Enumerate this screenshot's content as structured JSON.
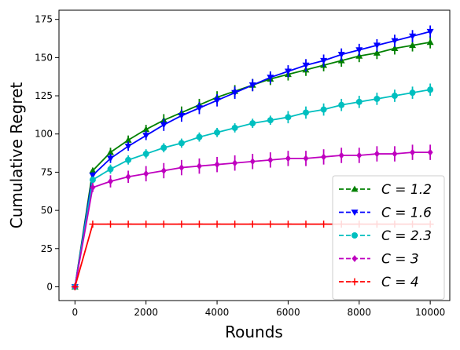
{
  "chart_data": {
    "type": "line",
    "title": "",
    "xlabel": "Rounds",
    "ylabel": "Cumulative Regret",
    "xlim": [
      -450,
      10550
    ],
    "ylim": [
      -9,
      181
    ],
    "xticks": [
      0,
      2000,
      4000,
      6000,
      8000,
      10000
    ],
    "yticks": [
      0,
      25,
      50,
      75,
      100,
      125,
      150,
      175
    ],
    "grid": false,
    "legend_position": "lower-right",
    "x": [
      0,
      500,
      1000,
      1500,
      2000,
      2500,
      3000,
      3500,
      4000,
      4500,
      5000,
      5500,
      6000,
      6500,
      7000,
      7500,
      8000,
      8500,
      9000,
      9500,
      10000
    ],
    "series": [
      {
        "name": "C = 1.2",
        "color": "#008000",
        "marker": "triangle-up",
        "values": [
          0,
          76,
          88,
          96,
          103,
          109,
          114,
          119,
          124,
          128,
          132,
          136,
          139,
          142,
          145,
          148,
          151,
          153,
          156,
          158,
          160
        ],
        "errors": [
          0,
          2,
          3,
          3,
          3,
          4,
          4,
          4,
          4,
          4,
          4,
          4,
          4,
          4,
          4,
          4,
          4,
          4,
          4,
          4,
          4
        ]
      },
      {
        "name": "C = 1.6",
        "color": "#0000ff",
        "marker": "triangle-down",
        "values": [
          0,
          73,
          84,
          92,
          99,
          106,
          112,
          117,
          122,
          127,
          132,
          137,
          141,
          145,
          148,
          152,
          155,
          158,
          161,
          164,
          167
        ],
        "errors": [
          0,
          2,
          3,
          3,
          3,
          4,
          4,
          4,
          4,
          4,
          4,
          4,
          4,
          4,
          4,
          4,
          4,
          4,
          4,
          4,
          4
        ]
      },
      {
        "name": "C = 2.3",
        "color": "#00bfbf",
        "marker": "circle",
        "values": [
          0,
          70,
          77,
          83,
          87,
          91,
          94,
          98,
          101,
          104,
          107,
          109,
          111,
          114,
          116,
          119,
          121,
          123,
          125,
          127,
          129
        ],
        "errors": [
          0,
          2,
          3,
          3,
          3,
          3,
          3,
          3,
          3,
          3,
          3,
          3,
          4,
          4,
          4,
          4,
          4,
          4,
          4,
          4,
          4
        ]
      },
      {
        "name": "C = 3",
        "color": "#bf00bf",
        "marker": "diamond",
        "values": [
          0,
          65,
          69,
          72,
          74,
          76,
          78,
          79,
          80,
          81,
          82,
          83,
          84,
          84,
          85,
          86,
          86,
          87,
          87,
          88,
          88
        ],
        "errors": [
          0,
          3,
          4,
          4,
          5,
          5,
          5,
          5,
          5,
          5,
          5,
          5,
          5,
          5,
          5,
          5,
          5,
          5,
          5,
          5,
          5
        ]
      },
      {
        "name": "C = 4",
        "color": "#ff0000",
        "marker": "plus",
        "values": [
          0,
          41,
          41,
          41,
          41,
          41,
          41,
          41,
          41,
          41,
          41,
          41,
          41,
          41,
          41,
          41,
          41,
          41,
          41,
          41,
          41
        ],
        "errors": [
          0,
          0,
          0,
          0,
          0,
          0,
          0,
          0,
          0,
          0,
          0,
          0,
          0,
          0,
          0,
          0,
          0,
          0,
          0,
          0,
          0
        ]
      }
    ]
  }
}
